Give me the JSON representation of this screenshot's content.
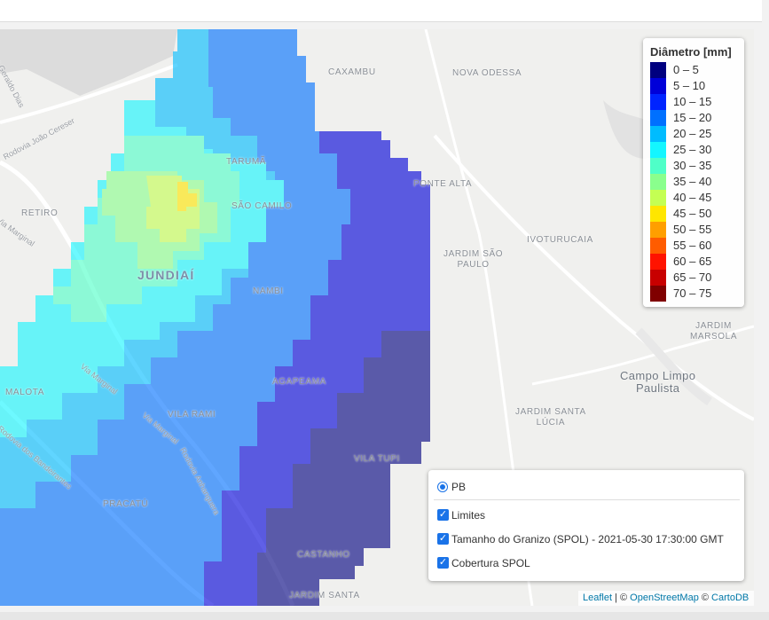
{
  "map": {
    "place_labels": [
      {
        "id": "caxambu",
        "text": "CAXAMBU"
      },
      {
        "id": "nova-odessa",
        "text": "NOVA ODESSA"
      },
      {
        "id": "taruma",
        "text": "TARUMÃ"
      },
      {
        "id": "ponte-alta",
        "text": "PONTE ALTA"
      },
      {
        "id": "retiro",
        "text": "RETIRO"
      },
      {
        "id": "sao-camilo",
        "text": "SÃO CAMILO"
      },
      {
        "id": "ivoturucaia",
        "text": "IVOTURUCAIA"
      },
      {
        "id": "jardim-sao-paulo",
        "text": "JARDIM SÃO\nPAULO"
      },
      {
        "id": "jundiai",
        "text": "JUNDIAÍ"
      },
      {
        "id": "nambi",
        "text": "NAMBI"
      },
      {
        "id": "jardim-marsola",
        "text": "JARDIM\nMARSOLA"
      },
      {
        "id": "campo-limpo",
        "text": "Campo Limpo\nPaulista"
      },
      {
        "id": "malota",
        "text": "MALOTA"
      },
      {
        "id": "agapeama",
        "text": "AGAPEAMA"
      },
      {
        "id": "vila-rami",
        "text": "VILA RAMI"
      },
      {
        "id": "jardim-santa-lucia",
        "text": "JARDIM SANTA\nLÚCIA"
      },
      {
        "id": "vila-tupi",
        "text": "VILA TUPI"
      },
      {
        "id": "pracatu",
        "text": "PRACATÚ"
      },
      {
        "id": "castanho",
        "text": "CASTANHO"
      },
      {
        "id": "jardim-santa",
        "text": "JARDIM SANTA"
      }
    ],
    "road_labels": [
      {
        "id": "geraldo-dias",
        "text": "Rua Geraldo Dias"
      },
      {
        "id": "joao-cereser",
        "text": "Rodovia João Cereser"
      },
      {
        "id": "marginal-1",
        "text": "Via Marginal"
      },
      {
        "id": "marginal-2",
        "text": "Via Marginal"
      },
      {
        "id": "marginal-3",
        "text": "Via Marginal"
      },
      {
        "id": "anhanguera",
        "text": "Rodovia Anhanguera"
      },
      {
        "id": "bandeirantes",
        "text": "Rodovia dos Bandeirantes"
      }
    ]
  },
  "legend": {
    "title": "Diâmetro [mm]",
    "items": [
      {
        "label": "0 – 5",
        "color": "#00007f"
      },
      {
        "label": "5 – 10",
        "color": "#0000d9"
      },
      {
        "label": "10 – 15",
        "color": "#0024ff"
      },
      {
        "label": "15 – 20",
        "color": "#0070ff"
      },
      {
        "label": "20 – 25",
        "color": "#00bcff"
      },
      {
        "label": "25 – 30",
        "color": "#14f6ff"
      },
      {
        "label": "30 – 35",
        "color": "#4fffc8"
      },
      {
        "label": "35 – 40",
        "color": "#8aff8d"
      },
      {
        "label": "40 – 45",
        "color": "#c4ff53"
      },
      {
        "label": "45 – 50",
        "color": "#ffe600"
      },
      {
        "label": "50 – 55",
        "color": "#ff9f00"
      },
      {
        "label": "55 – 60",
        "color": "#ff5c00"
      },
      {
        "label": "60 – 65",
        "color": "#ff1300"
      },
      {
        "label": "65 – 70",
        "color": "#c80000"
      },
      {
        "label": "70 – 75",
        "color": "#800000"
      }
    ]
  },
  "layers": {
    "base": [
      {
        "label": "PB",
        "checked": true
      }
    ],
    "overlays": [
      {
        "label": "Limites",
        "checked": true
      },
      {
        "label": "Tamanho do Granizo (SPOL) - 2021-05-30 17:30:00 GMT",
        "checked": true
      },
      {
        "label": "Cobertura SPOL",
        "checked": true
      }
    ]
  },
  "attribution": {
    "leaflet": "Leaflet",
    "sep1": " | © ",
    "osm": "OpenStreetMap",
    "sep2": " © ",
    "cartodb": "CartoDB"
  }
}
